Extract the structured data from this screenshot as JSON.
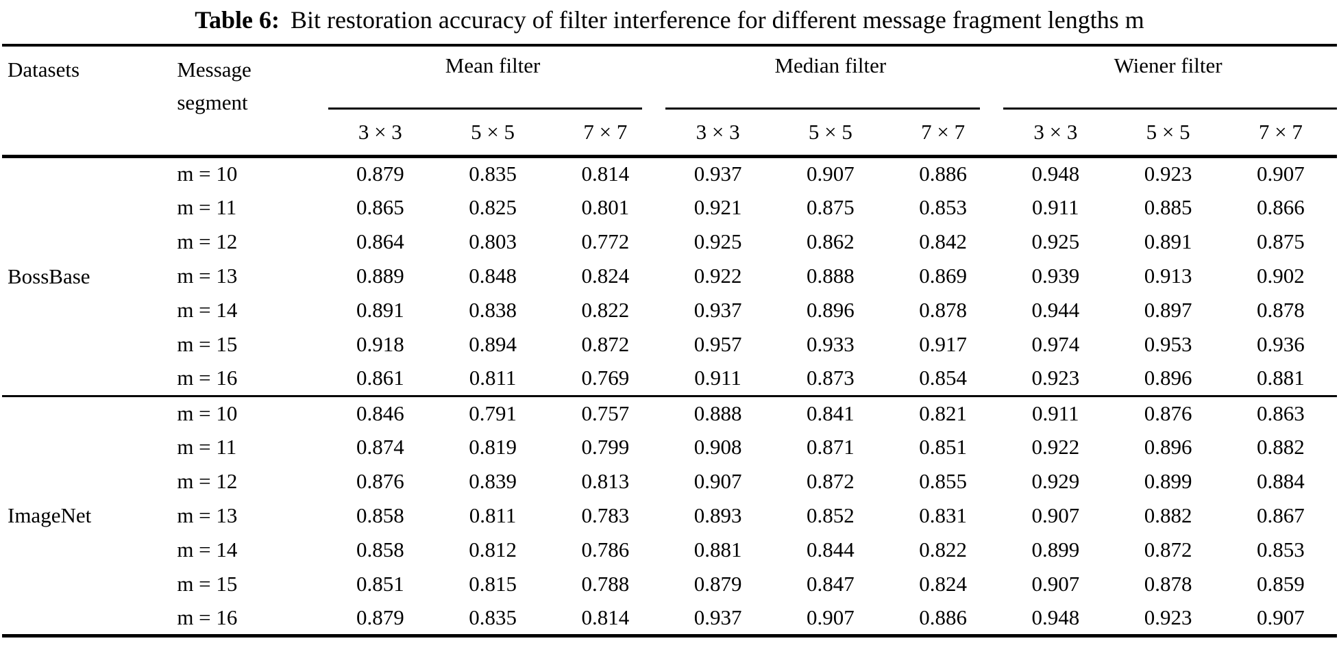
{
  "caption": {
    "label": "Table 6:",
    "text": "Bit restoration accuracy of filter interference for different message fragment lengths m"
  },
  "headers": {
    "datasets": "Datasets",
    "message_segment": "Message segment",
    "groups": [
      "Mean filter",
      "Median filter",
      "Wiener filter"
    ],
    "kernels": [
      "3 × 3",
      "5 × 5",
      "7 × 7"
    ]
  },
  "sections": [
    {
      "dataset": "BossBase",
      "rows": [
        {
          "segment": "m = 10",
          "values": [
            "0.879",
            "0.835",
            "0.814",
            "0.937",
            "0.907",
            "0.886",
            "0.948",
            "0.923",
            "0.907"
          ]
        },
        {
          "segment": "m = 11",
          "values": [
            "0.865",
            "0.825",
            "0.801",
            "0.921",
            "0.875",
            "0.853",
            "0.911",
            "0.885",
            "0.866"
          ]
        },
        {
          "segment": "m = 12",
          "values": [
            "0.864",
            "0.803",
            "0.772",
            "0.925",
            "0.862",
            "0.842",
            "0.925",
            "0.891",
            "0.875"
          ]
        },
        {
          "segment": "m = 13",
          "values": [
            "0.889",
            "0.848",
            "0.824",
            "0.922",
            "0.888",
            "0.869",
            "0.939",
            "0.913",
            "0.902"
          ]
        },
        {
          "segment": "m = 14",
          "values": [
            "0.891",
            "0.838",
            "0.822",
            "0.937",
            "0.896",
            "0.878",
            "0.944",
            "0.897",
            "0.878"
          ]
        },
        {
          "segment": "m = 15",
          "values": [
            "0.918",
            "0.894",
            "0.872",
            "0.957",
            "0.933",
            "0.917",
            "0.974",
            "0.953",
            "0.936"
          ]
        },
        {
          "segment": "m = 16",
          "values": [
            "0.861",
            "0.811",
            "0.769",
            "0.911",
            "0.873",
            "0.854",
            "0.923",
            "0.896",
            "0.881"
          ]
        }
      ]
    },
    {
      "dataset": "ImageNet",
      "rows": [
        {
          "segment": "m = 10",
          "values": [
            "0.846",
            "0.791",
            "0.757",
            "0.888",
            "0.841",
            "0.821",
            "0.911",
            "0.876",
            "0.863"
          ]
        },
        {
          "segment": "m = 11",
          "values": [
            "0.874",
            "0.819",
            "0.799",
            "0.908",
            "0.871",
            "0.851",
            "0.922",
            "0.896",
            "0.882"
          ]
        },
        {
          "segment": "m = 12",
          "values": [
            "0.876",
            "0.839",
            "0.813",
            "0.907",
            "0.872",
            "0.855",
            "0.929",
            "0.899",
            "0.884"
          ]
        },
        {
          "segment": "m = 13",
          "values": [
            "0.858",
            "0.811",
            "0.783",
            "0.893",
            "0.852",
            "0.831",
            "0.907",
            "0.882",
            "0.867"
          ]
        },
        {
          "segment": "m = 14",
          "values": [
            "0.858",
            "0.812",
            "0.786",
            "0.881",
            "0.844",
            "0.822",
            "0.899",
            "0.872",
            "0.853"
          ]
        },
        {
          "segment": "m = 15",
          "values": [
            "0.851",
            "0.815",
            "0.788",
            "0.879",
            "0.847",
            "0.824",
            "0.907",
            "0.878",
            "0.859"
          ]
        },
        {
          "segment": "m = 16",
          "values": [
            "0.879",
            "0.835",
            "0.814",
            "0.937",
            "0.907",
            "0.886",
            "0.948",
            "0.923",
            "0.907"
          ]
        }
      ]
    }
  ]
}
